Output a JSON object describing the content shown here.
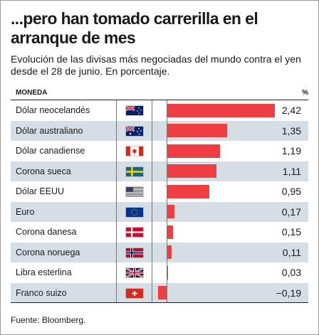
{
  "title": "...pero han tomado carrerilla en el arranque de mes",
  "subtitle": "Evolución de las divisas más negociadas del mundo contra el yen desde el 28 de junio. En porcentaje.",
  "header": {
    "currency_col": "MONEDA",
    "value_col": "%"
  },
  "source": "Fuente: Bloomberg.",
  "colors": {
    "bar": "#ef3e42",
    "alt_row": "#d6dee5"
  },
  "chart_data": {
    "type": "bar",
    "orientation": "horizontal",
    "title": "...pero han tomado carrerilla en el arranque de mes",
    "subtitle": "Evolución de las divisas más negociadas del mundo contra el yen desde el 28 de junio. En porcentaje.",
    "xlim": [
      -0.19,
      2.42
    ],
    "grid": false,
    "categories": [
      "Dólar neocelandés",
      "Dólar australiano",
      "Dólar canadiense",
      "Corona sueca",
      "Dólar EEUU",
      "Euro",
      "Corona danesa",
      "Corona noruega",
      "Libra esterlina",
      "Franco suizo"
    ],
    "values": [
      2.42,
      1.35,
      1.19,
      1.11,
      0.95,
      0.17,
      0.15,
      0.11,
      0.03,
      -0.19
    ],
    "value_labels": [
      "2,42",
      "1,35",
      "1,19",
      "1,11",
      "0,95",
      "0,17",
      "0,15",
      "0,11",
      "0,03",
      "−0,19"
    ],
    "flags": [
      "nz-flag-icon",
      "au-flag-icon",
      "ca-flag-icon",
      "se-flag-icon",
      "us-flag-icon",
      "eu-flag-icon",
      "dk-flag-icon",
      "no-flag-icon",
      "gb-flag-icon",
      "ch-flag-icon"
    ]
  }
}
